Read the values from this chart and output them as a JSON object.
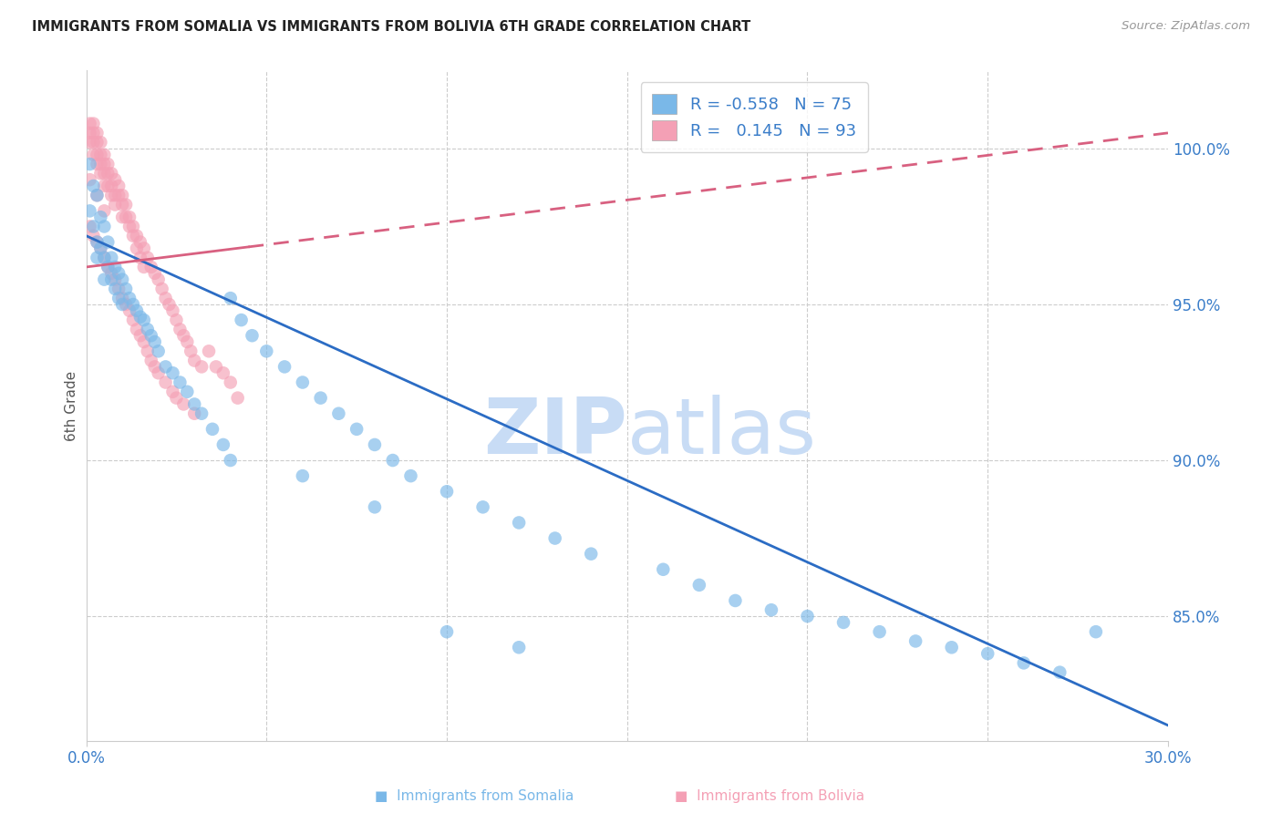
{
  "title": "IMMIGRANTS FROM SOMALIA VS IMMIGRANTS FROM BOLIVIA 6TH GRADE CORRELATION CHART",
  "source": "Source: ZipAtlas.com",
  "ylabel": "6th Grade",
  "xmin": 0.0,
  "xmax": 0.3,
  "ymin": 81.0,
  "ymax": 102.5,
  "somalia_R": -0.558,
  "somalia_N": 75,
  "bolivia_R": 0.145,
  "bolivia_N": 93,
  "somalia_color": "#7AB8E8",
  "bolivia_color": "#F4A0B5",
  "somalia_line_color": "#2B6CC4",
  "bolivia_line_color": "#D86080",
  "watermark_color": "#C8DCF5",
  "yticks": [
    85.0,
    90.0,
    95.0,
    100.0
  ],
  "ytick_labels": [
    "85.0%",
    "90.0%",
    "95.0%",
    "100.0%"
  ],
  "som_line_x0": 0.0,
  "som_line_y0": 97.2,
  "som_line_x1": 0.3,
  "som_line_y1": 81.5,
  "bol_line_x0": 0.0,
  "bol_line_y0": 96.2,
  "bol_line_x1": 0.3,
  "bol_line_y1": 100.5,
  "somalia_x": [
    0.001,
    0.001,
    0.002,
    0.002,
    0.003,
    0.003,
    0.003,
    0.004,
    0.004,
    0.005,
    0.005,
    0.005,
    0.006,
    0.006,
    0.007,
    0.007,
    0.008,
    0.008,
    0.009,
    0.009,
    0.01,
    0.01,
    0.011,
    0.012,
    0.013,
    0.014,
    0.015,
    0.016,
    0.017,
    0.018,
    0.019,
    0.02,
    0.022,
    0.024,
    0.026,
    0.028,
    0.03,
    0.032,
    0.035,
    0.038,
    0.04,
    0.043,
    0.046,
    0.05,
    0.055,
    0.06,
    0.065,
    0.07,
    0.075,
    0.08,
    0.085,
    0.09,
    0.1,
    0.11,
    0.12,
    0.13,
    0.14,
    0.16,
    0.17,
    0.18,
    0.19,
    0.2,
    0.21,
    0.22,
    0.23,
    0.24,
    0.25,
    0.26,
    0.27,
    0.28,
    0.04,
    0.06,
    0.08,
    0.1,
    0.12
  ],
  "somalia_y": [
    99.5,
    98.0,
    98.8,
    97.5,
    98.5,
    97.0,
    96.5,
    97.8,
    96.8,
    97.5,
    96.5,
    95.8,
    97.0,
    96.2,
    96.5,
    95.8,
    96.2,
    95.5,
    96.0,
    95.2,
    95.8,
    95.0,
    95.5,
    95.2,
    95.0,
    94.8,
    94.6,
    94.5,
    94.2,
    94.0,
    93.8,
    93.5,
    93.0,
    92.8,
    92.5,
    92.2,
    91.8,
    91.5,
    91.0,
    90.5,
    95.2,
    94.5,
    94.0,
    93.5,
    93.0,
    92.5,
    92.0,
    91.5,
    91.0,
    90.5,
    90.0,
    89.5,
    89.0,
    88.5,
    88.0,
    87.5,
    87.0,
    86.5,
    86.0,
    85.5,
    85.2,
    85.0,
    84.8,
    84.5,
    84.2,
    84.0,
    83.8,
    83.5,
    83.2,
    84.5,
    90.0,
    89.5,
    88.5,
    84.5,
    84.0
  ],
  "bolivia_x": [
    0.001,
    0.001,
    0.001,
    0.002,
    0.002,
    0.002,
    0.002,
    0.003,
    0.003,
    0.003,
    0.003,
    0.004,
    0.004,
    0.004,
    0.004,
    0.005,
    0.005,
    0.005,
    0.005,
    0.006,
    0.006,
    0.006,
    0.007,
    0.007,
    0.007,
    0.008,
    0.008,
    0.008,
    0.009,
    0.009,
    0.01,
    0.01,
    0.01,
    0.011,
    0.011,
    0.012,
    0.012,
    0.013,
    0.013,
    0.014,
    0.014,
    0.015,
    0.015,
    0.016,
    0.016,
    0.017,
    0.018,
    0.019,
    0.02,
    0.021,
    0.022,
    0.023,
    0.024,
    0.025,
    0.026,
    0.027,
    0.028,
    0.029,
    0.03,
    0.032,
    0.034,
    0.036,
    0.038,
    0.04,
    0.042,
    0.001,
    0.002,
    0.003,
    0.004,
    0.005,
    0.006,
    0.007,
    0.008,
    0.009,
    0.01,
    0.011,
    0.012,
    0.013,
    0.014,
    0.015,
    0.016,
    0.017,
    0.018,
    0.019,
    0.02,
    0.022,
    0.024,
    0.025,
    0.027,
    0.03,
    0.001,
    0.003,
    0.005
  ],
  "bolivia_y": [
    100.8,
    100.5,
    100.2,
    100.8,
    100.5,
    100.2,
    99.8,
    100.5,
    100.2,
    99.8,
    99.5,
    100.2,
    99.8,
    99.5,
    99.2,
    99.8,
    99.5,
    99.2,
    98.8,
    99.5,
    99.2,
    98.8,
    99.2,
    98.8,
    98.5,
    99.0,
    98.5,
    98.2,
    98.8,
    98.5,
    98.5,
    98.2,
    97.8,
    98.2,
    97.8,
    97.8,
    97.5,
    97.5,
    97.2,
    97.2,
    96.8,
    97.0,
    96.5,
    96.8,
    96.2,
    96.5,
    96.2,
    96.0,
    95.8,
    95.5,
    95.2,
    95.0,
    94.8,
    94.5,
    94.2,
    94.0,
    93.8,
    93.5,
    93.2,
    93.0,
    93.5,
    93.0,
    92.8,
    92.5,
    92.0,
    97.5,
    97.2,
    97.0,
    96.8,
    96.5,
    96.2,
    96.0,
    95.8,
    95.5,
    95.2,
    95.0,
    94.8,
    94.5,
    94.2,
    94.0,
    93.8,
    93.5,
    93.2,
    93.0,
    92.8,
    92.5,
    92.2,
    92.0,
    91.8,
    91.5,
    99.0,
    98.5,
    98.0
  ]
}
